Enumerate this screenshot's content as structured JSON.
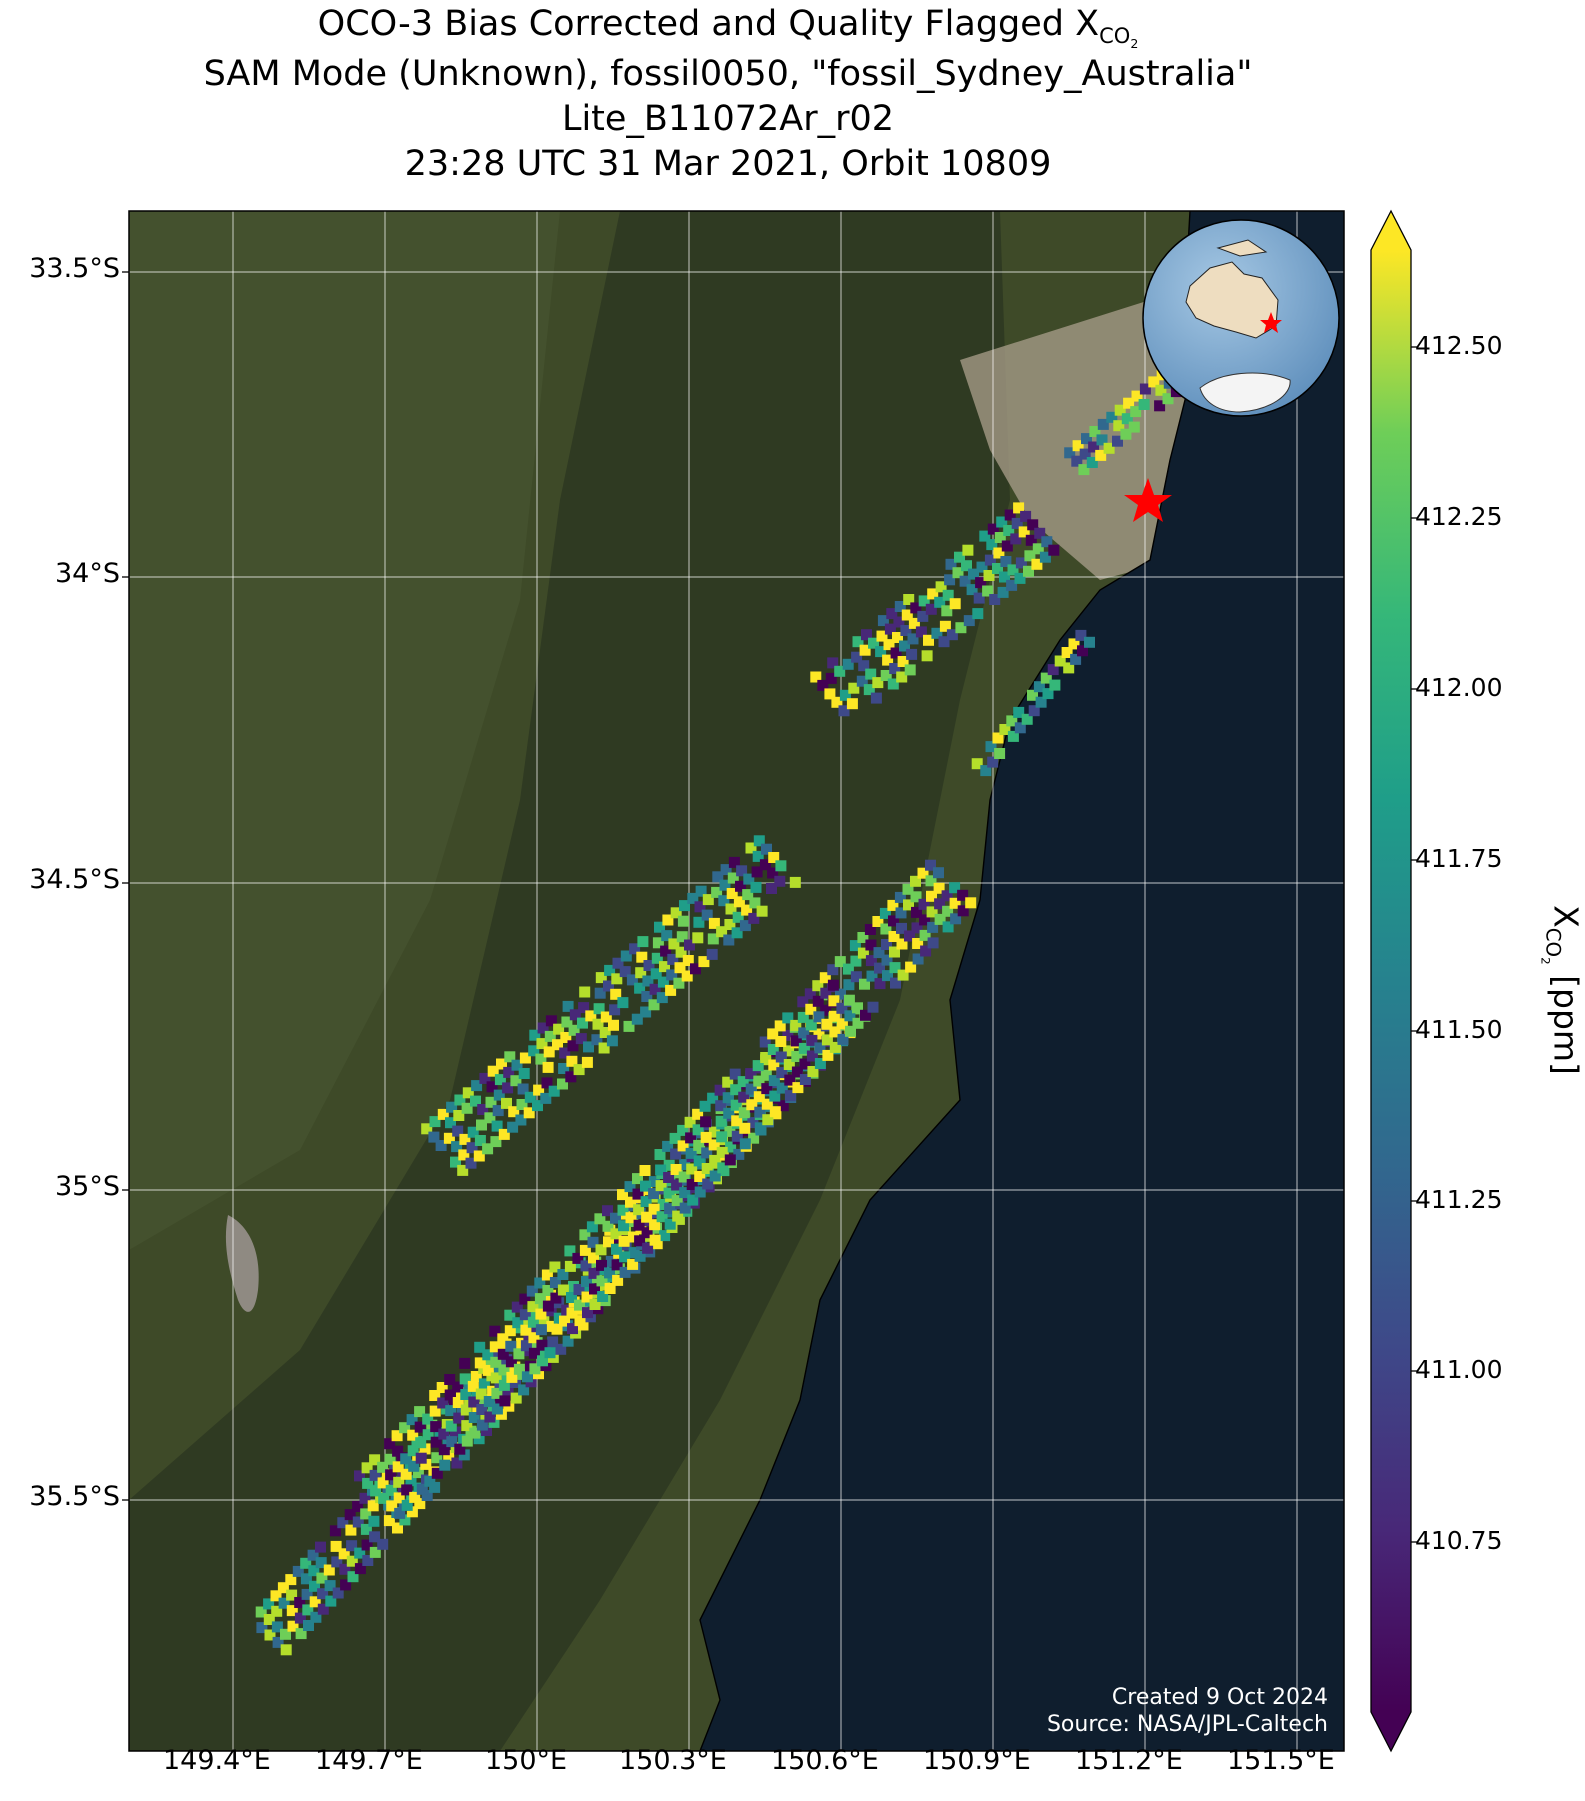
{
  "title": {
    "line1": "OCO-3 Bias Corrected and Quality Flagged X",
    "line1_sub": "CO",
    "line1_subsub": "2",
    "line2": "SAM Mode (Unknown), fossil0050, \"fossil_Sydney_Australia\"",
    "line3": "Lite_B11072Ar_r02",
    "line4": "23:28 UTC 31 Mar 2021, Orbit 10809"
  },
  "map": {
    "lat_ticks": [
      "33.5°S",
      "34°S",
      "34.5°S",
      "35°S",
      "35.5°S"
    ],
    "lon_ticks": [
      "149.4°E",
      "149.7°E",
      "150°E",
      "150.3°E",
      "150.6°E",
      "150.9°E",
      "151.2°E",
      "151.5°E"
    ],
    "target_marker": "red-star",
    "colors": {
      "ocean": "#0f1e2e",
      "land": "#3e4a28",
      "urban": "#a49a86",
      "grid": "#ffffff"
    }
  },
  "colorbar": {
    "ticks": [
      "412.50",
      "412.25",
      "412.00",
      "411.75",
      "411.50",
      "411.25",
      "411.00",
      "410.75"
    ],
    "label_main": "X",
    "label_sub": "CO",
    "label_subsub": "2",
    "label_unit": " [ppm]",
    "colormap": "viridis",
    "extend": "both"
  },
  "credits": {
    "created": "Created 9 Oct 2024",
    "source": "Source: NASA/JPL-Caltech"
  }
}
